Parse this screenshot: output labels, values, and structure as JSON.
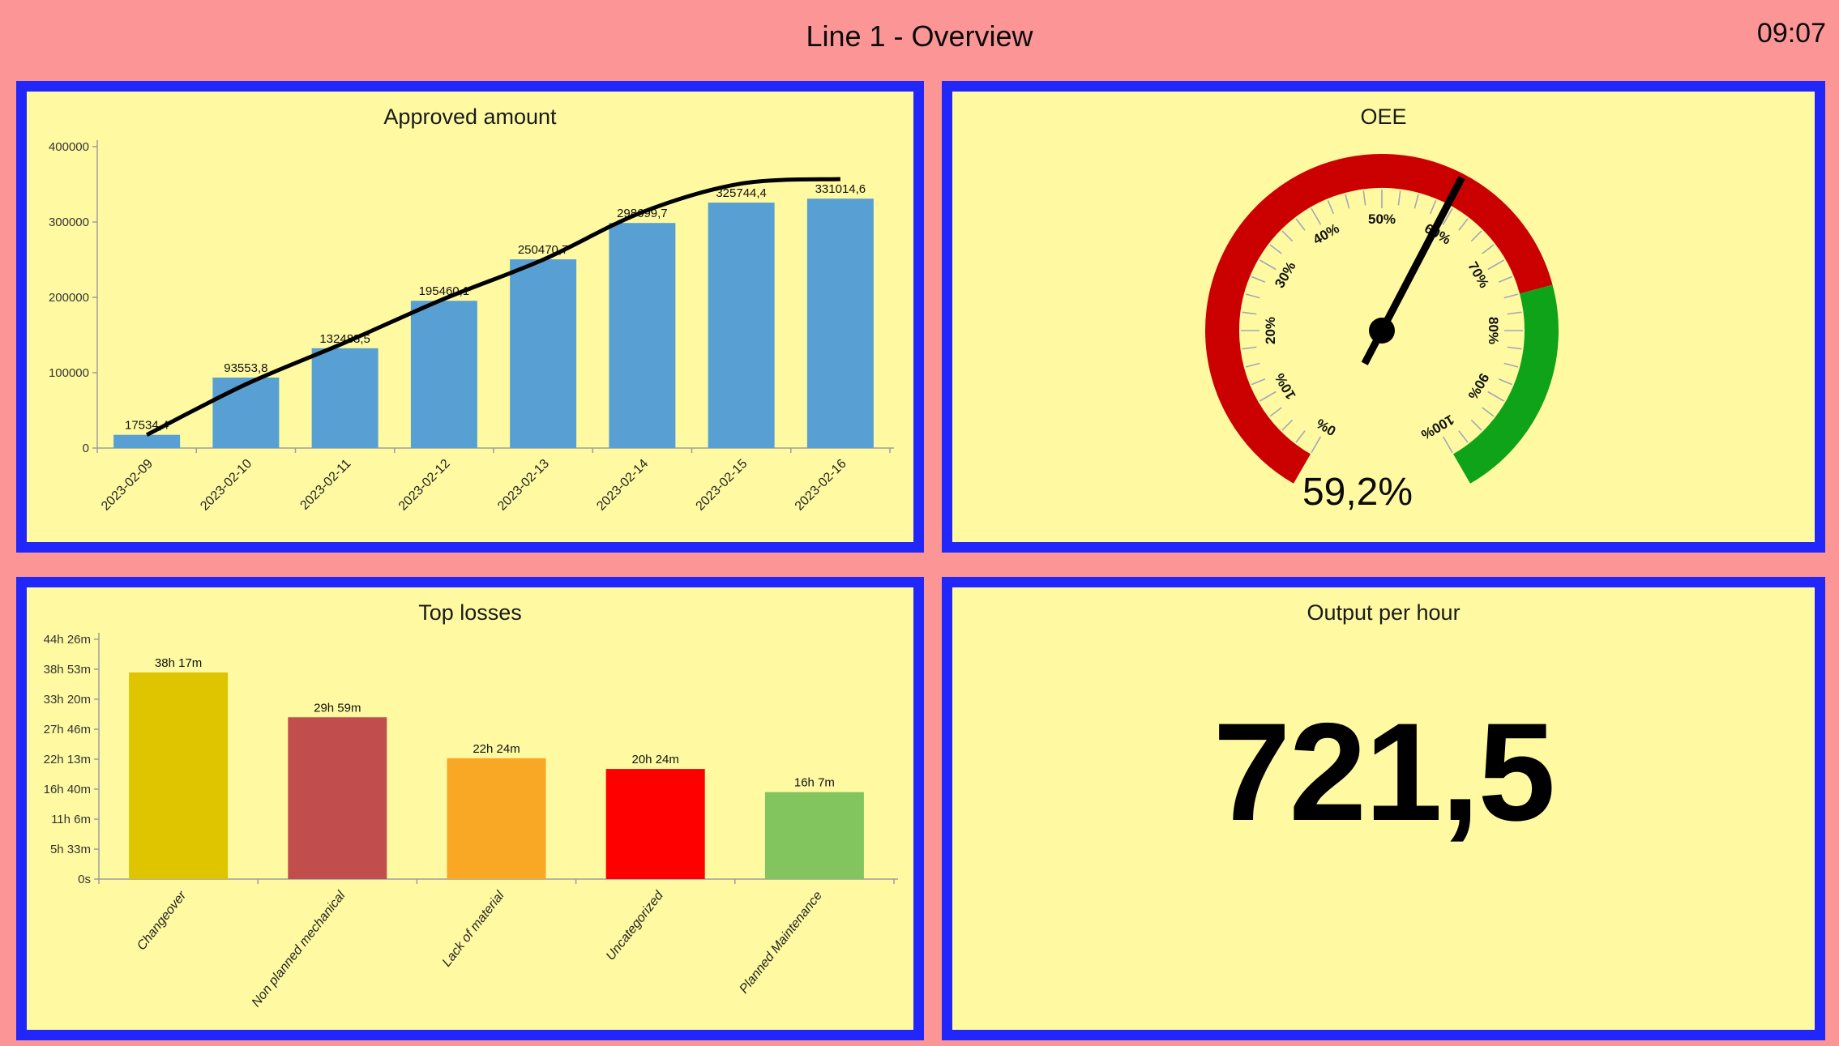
{
  "header": {
    "title": "Line 1 - Overview",
    "clock": "09:07"
  },
  "colors": {
    "background": "#FC9696",
    "panel_fill": "#FFFAA1",
    "panel_border": "#2127FB",
    "axis": "#9e9e9e",
    "tick_text": "#333333",
    "gauge_tick": "#a0a8b8"
  },
  "chart_data": [
    {
      "type": "bar",
      "title": "Approved amount",
      "categories": [
        "2023-02-09",
        "2023-02-10",
        "2023-02-11",
        "2023-02-12",
        "2023-02-13",
        "2023-02-14",
        "2023-02-15",
        "2023-02-16"
      ],
      "values": [
        17534.4,
        93553.8,
        132483.5,
        195460.1,
        250470.7,
        298699.7,
        325744.4,
        331014.6
      ],
      "bar_labels": [
        "17534,4",
        "93553,8",
        "132483,5",
        "195460,1",
        "250470,7",
        "298699,7",
        "325744,4",
        "331014,6"
      ],
      "bar_color": "#58A0D4",
      "line_series": {
        "name": "trend",
        "color": "#000000",
        "values": [
          17534,
          84600,
          140000,
          198000,
          250000,
          313000,
          351000,
          357000
        ]
      },
      "ylim": [
        0,
        400000
      ],
      "yticks": [
        0,
        100000,
        200000,
        300000,
        400000
      ],
      "ytick_labels": [
        "0",
        "100000",
        "200000",
        "300000",
        "400000"
      ],
      "grid": false,
      "legend": "none"
    },
    {
      "type": "gauge",
      "title": "OEE",
      "value": 59.2,
      "value_label": "59,2%",
      "min": 0,
      "max": 100,
      "major_tick_step": 10,
      "minor_tick_step": 2.5,
      "tick_labels": [
        "0%",
        "10%",
        "20%",
        "30%",
        "40%",
        "50%",
        "60%",
        "70%",
        "80%",
        "90%",
        "100%"
      ],
      "zones": [
        {
          "from": 0,
          "to": 75,
          "color": "#CB0101"
        },
        {
          "from": 75,
          "to": 100,
          "color": "#0FA31A"
        }
      ],
      "needle_color": "#000000"
    },
    {
      "type": "bar",
      "title": "Top losses",
      "categories": [
        "Changeover",
        "Non planned mechanical",
        "Lack of material",
        "Uncategorized",
        "Planned Maintenance"
      ],
      "values_minutes": [
        2297,
        1799,
        1344,
        1224,
        967
      ],
      "bar_labels": [
        "38h 17m",
        "29h 59m",
        "22h 24m",
        "20h 24m",
        "16h 7m"
      ],
      "bar_colors": [
        "#DFC400",
        "#C24D4D",
        "#F9A825",
        "#FE0000",
        "#82C55E"
      ],
      "ylim_minutes": [
        0,
        2666
      ],
      "yticks_minutes": [
        0,
        333,
        666,
        1000,
        1333,
        1666,
        2000,
        2333,
        2666
      ],
      "ytick_labels": [
        "0s",
        "5h 33m",
        "11h 6m",
        "16h 40m",
        "22h 13m",
        "27h 46m",
        "33h 20m",
        "38h 53m",
        "44h 26m"
      ],
      "grid": false,
      "legend": "none"
    },
    {
      "type": "kpi",
      "title": "Output per hour",
      "value": 721.5,
      "value_label": "721,5"
    }
  ]
}
